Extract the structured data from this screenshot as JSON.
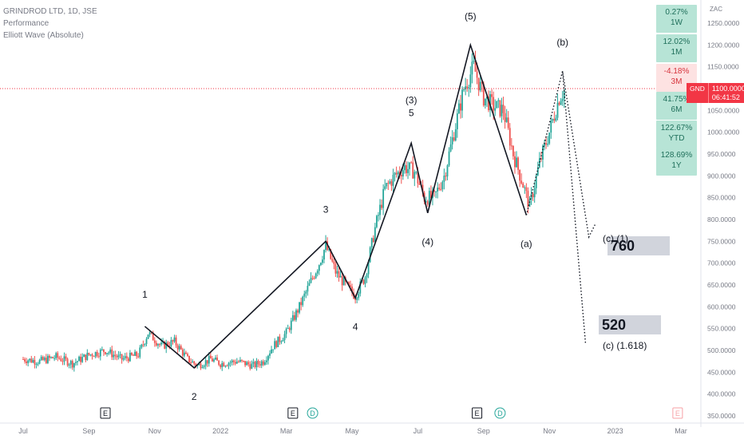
{
  "legend": {
    "symbol": "GRINDROD LTD, 1D, JSE",
    "indicator1": "Performance",
    "indicator2": "Elliott Wave (Absolute)"
  },
  "currency": "ZAC",
  "price_tag": {
    "symbol": "GND",
    "price": "1100.0000",
    "countdown": "06:41:52"
  },
  "performance": [
    {
      "value": "0.27%",
      "period": "1W",
      "sign": "pos"
    },
    {
      "value": "12.02%",
      "period": "1M",
      "sign": "pos"
    },
    {
      "value": "-4.18%",
      "period": "3M",
      "sign": "neg"
    },
    {
      "value": "41.75%",
      "period": "6M",
      "sign": "pos"
    },
    {
      "value": "122.67%",
      "period": "YTD",
      "sign": "pos"
    },
    {
      "value": "128.69%",
      "period": "1Y",
      "sign": "pos"
    }
  ],
  "annotations": {
    "target1_box": "760",
    "target1_label": "(c) (1)",
    "target2_box": "520",
    "target2_label": "(c) (1.618)"
  },
  "chart_data": {
    "type": "candlestick",
    "y_axis": {
      "ticks": [
        "1250.0000",
        "1200.0000",
        "1150.0000",
        "1100.0000",
        "1050.0000",
        "1000.0000",
        "950.0000",
        "900.0000",
        "850.0000",
        "800.0000",
        "750.0000",
        "700.0000",
        "650.0000",
        "600.0000",
        "550.0000",
        "500.0000",
        "450.0000",
        "400.0000",
        "350.0000"
      ],
      "range": [
        350,
        1250
      ]
    },
    "x_axis": {
      "ticks": [
        "Jul",
        "Sep",
        "Nov",
        "2022",
        "Mar",
        "May",
        "Jul",
        "Sep",
        "Nov",
        "2023",
        "Mar"
      ],
      "range": [
        0,
        21.5
      ],
      "tick_positions_months": [
        0,
        2,
        4,
        6,
        8,
        10,
        12,
        14,
        16,
        18,
        20
      ]
    },
    "current_price": 1100,
    "earnings_markers": [
      {
        "label": "E",
        "x": 2.5
      },
      {
        "label": "E",
        "x": 8.2
      },
      {
        "label": "D",
        "x": 8.8
      },
      {
        "label": "E",
        "x": 13.8
      },
      {
        "label": "D",
        "x": 14.5
      },
      {
        "label": "E",
        "x": 19.9
      }
    ],
    "elliott_wave": {
      "primary": [
        {
          "x": 3.7,
          "y": 555,
          "label": "1"
        },
        {
          "x": 5.2,
          "y": 460,
          "label": "2"
        },
        {
          "x": 9.2,
          "y": 750,
          "label": "3"
        },
        {
          "x": 10.1,
          "y": 620,
          "label": "4"
        },
        {
          "x": 11.8,
          "y": 975,
          "label": "(3) 5"
        },
        {
          "x": 12.3,
          "y": 815,
          "label": "(4)"
        },
        {
          "x": 13.6,
          "y": 1200,
          "label": "(5)"
        },
        {
          "x": 15.3,
          "y": 810,
          "label": "(a)"
        }
      ],
      "projection": [
        {
          "x": 15.3,
          "y": 810
        },
        {
          "x": 16.4,
          "y": 1140,
          "label": "(b)"
        },
        {
          "x": 17.2,
          "y": 760
        },
        {
          "x": 17.4,
          "y": 790
        }
      ],
      "projection2": [
        {
          "x": 16.4,
          "y": 1140
        },
        {
          "x": 17.1,
          "y": 515
        }
      ]
    },
    "series": [
      {
        "name": "GND",
        "ohlc_anchor_closes": [
          [
            0.0,
            480
          ],
          [
            0.5,
            475
          ],
          [
            1.0,
            485
          ],
          [
            1.5,
            470
          ],
          [
            2.0,
            490
          ],
          [
            2.5,
            500
          ],
          [
            3.0,
            480
          ],
          [
            3.5,
            490
          ],
          [
            3.8,
            540
          ],
          [
            4.2,
            510
          ],
          [
            4.6,
            520
          ],
          [
            5.0,
            480
          ],
          [
            5.3,
            465
          ],
          [
            5.7,
            480
          ],
          [
            6.0,
            470
          ],
          [
            6.5,
            475
          ],
          [
            7.0,
            465
          ],
          [
            7.3,
            475
          ],
          [
            7.6,
            510
          ],
          [
            8.0,
            540
          ],
          [
            8.4,
            600
          ],
          [
            8.7,
            650
          ],
          [
            9.0,
            700
          ],
          [
            9.2,
            740
          ],
          [
            9.5,
            680
          ],
          [
            9.8,
            650
          ],
          [
            10.1,
            625
          ],
          [
            10.4,
            670
          ],
          [
            10.7,
            780
          ],
          [
            11.0,
            870
          ],
          [
            11.3,
            900
          ],
          [
            11.6,
            920
          ],
          [
            11.9,
            910
          ],
          [
            12.2,
            850
          ],
          [
            12.5,
            850
          ],
          [
            12.8,
            900
          ],
          [
            13.1,
            1000
          ],
          [
            13.4,
            1100
          ],
          [
            13.7,
            1150
          ],
          [
            14.0,
            1080
          ],
          [
            14.3,
            1060
          ],
          [
            14.6,
            1050
          ],
          [
            14.9,
            950
          ],
          [
            15.2,
            880
          ],
          [
            15.4,
            830
          ],
          [
            15.7,
            930
          ],
          [
            16.0,
            1000
          ],
          [
            16.3,
            1080
          ],
          [
            16.5,
            1100
          ]
        ]
      }
    ]
  }
}
